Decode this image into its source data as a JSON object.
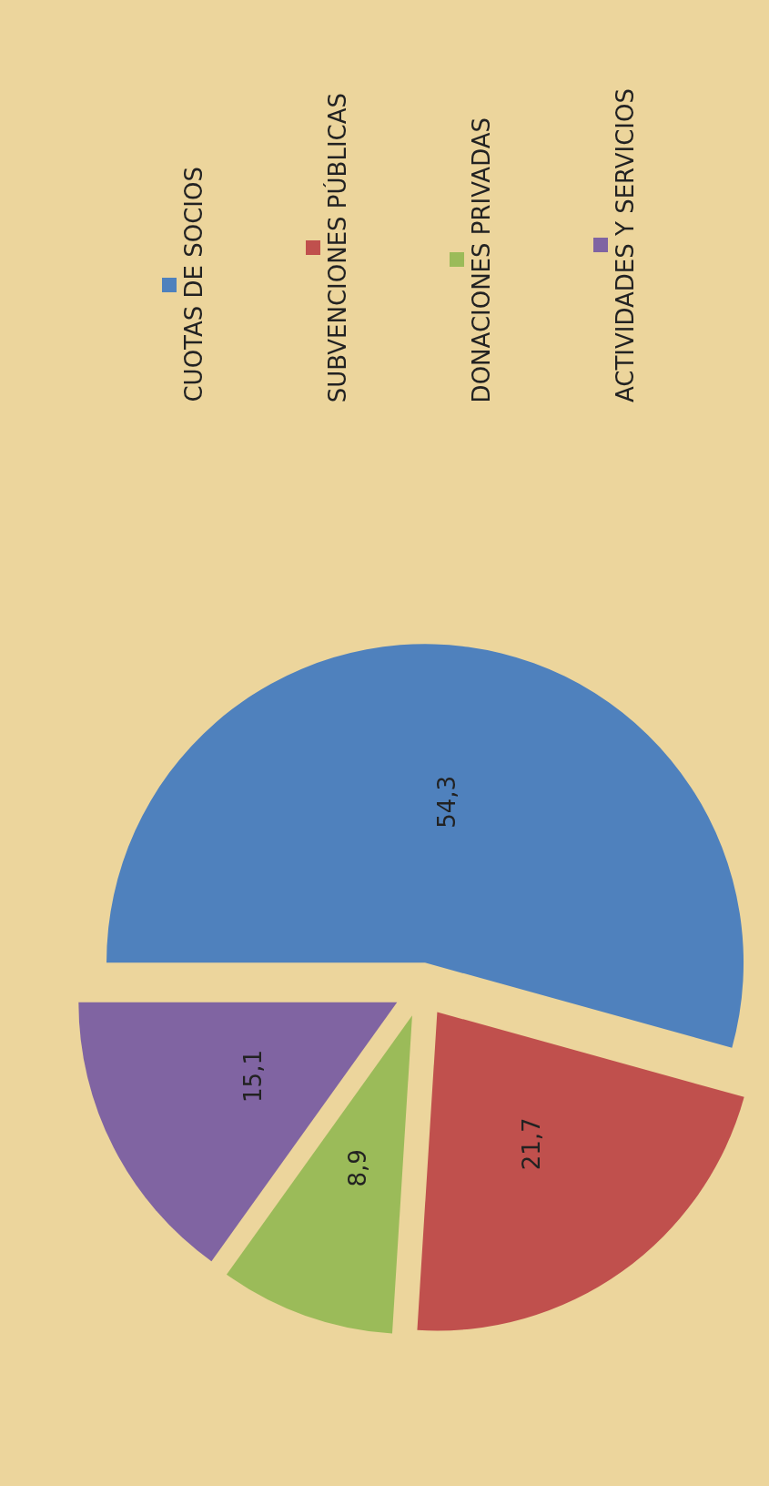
{
  "chart_data": {
    "type": "pie",
    "categories": [
      "CUOTAS DE SOCIOS",
      "SUBVENCIONES PÚBLICAS",
      "DONACIONES PRIVADAS",
      "ACTIVIDADES Y SERVICIOS"
    ],
    "values": [
      54.3,
      21.7,
      8.9,
      15.1
    ],
    "colors": [
      "#4f81bd",
      "#c0504d",
      "#9bbb59",
      "#8064a2"
    ],
    "value_labels": [
      "54,3",
      "21,7",
      "8,9",
      "15,1"
    ],
    "legend": "right"
  }
}
